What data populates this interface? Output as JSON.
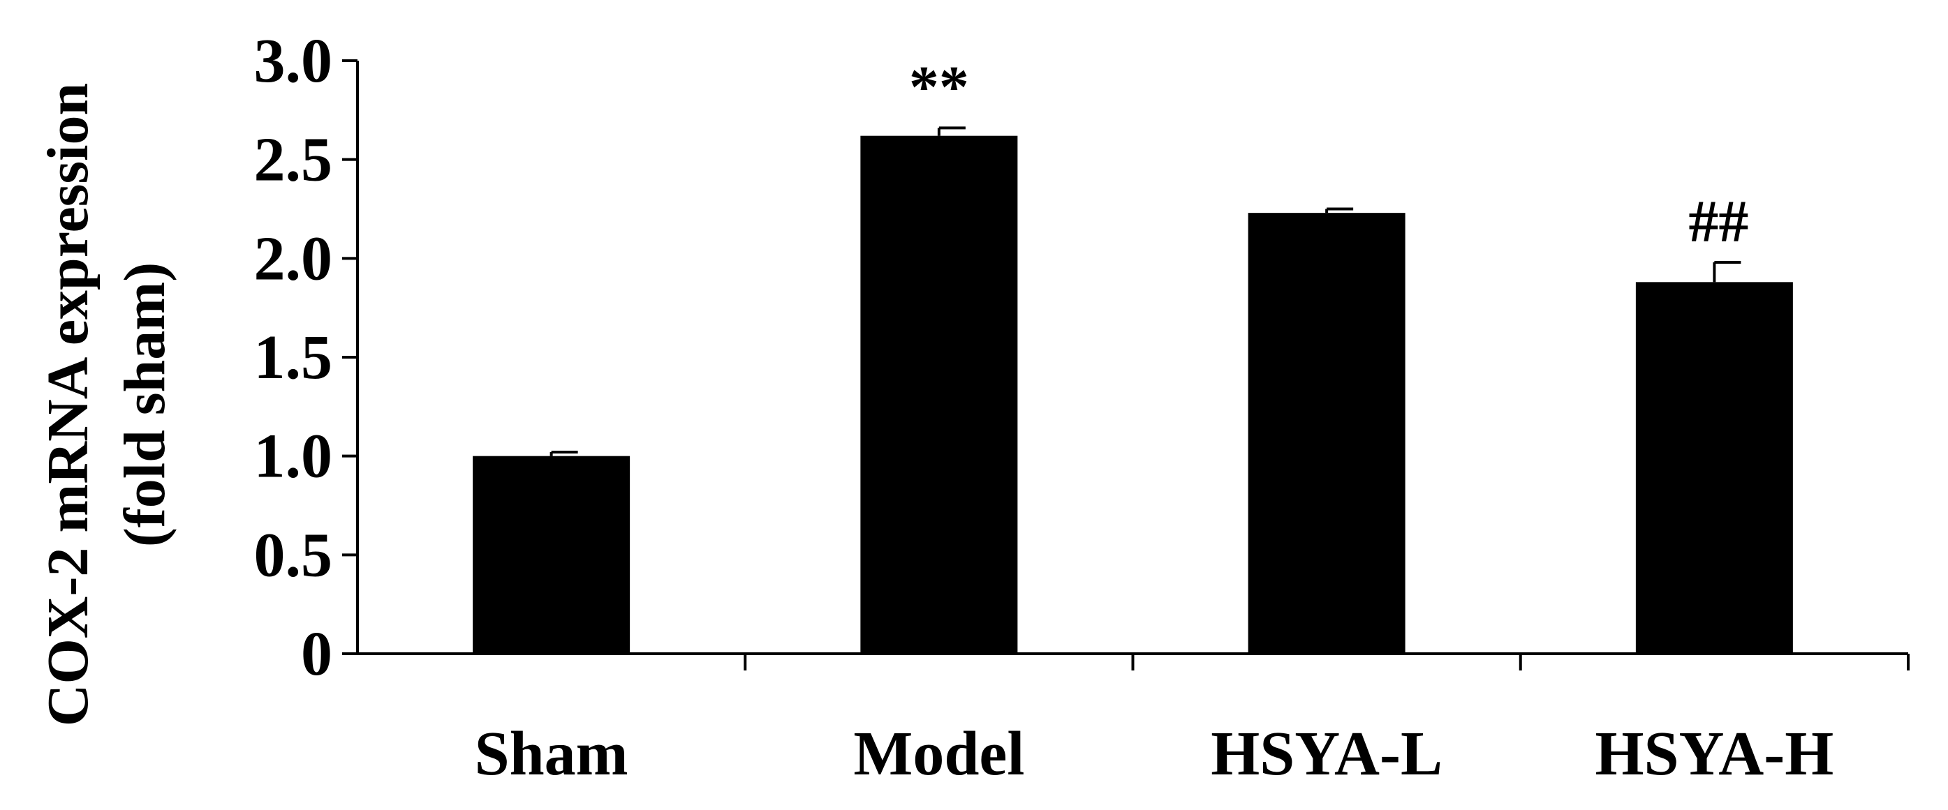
{
  "chart_data": {
    "type": "bar",
    "title": "",
    "ylabel_lines": [
      "COX-2 mRNA expression",
      "(fold sham)"
    ],
    "xlabel": "",
    "categories": [
      "Sham",
      "Model",
      "HSYA-L",
      "HSYA-H"
    ],
    "values": [
      1.0,
      2.62,
      2.23,
      1.88
    ],
    "errors": [
      0.02,
      0.04,
      0.02,
      0.1
    ],
    "annotations": [
      "",
      "**",
      "",
      "##"
    ],
    "ylim": [
      0,
      3.0
    ],
    "yticks": [
      0,
      0.5,
      1.0,
      1.5,
      2.0,
      2.5,
      3.0
    ],
    "ytick_labels": [
      "0",
      "0.5",
      "1.0",
      "1.5",
      "2.0",
      "2.5",
      "3.0"
    ],
    "grid": false,
    "bar_color": "#000000"
  }
}
